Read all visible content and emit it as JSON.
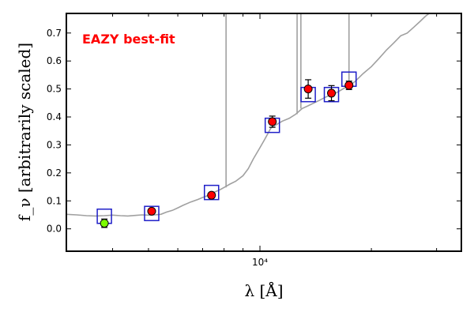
{
  "chart_data": {
    "type": "scatter",
    "xscale": "log",
    "xlim": [
      3000,
      35000
    ],
    "ylim": [
      -0.08,
      0.77
    ],
    "xlabel": "λ [Å]",
    "ylabel": "f_ν [arbitrarily scaled]",
    "grid": false,
    "x_tick_labels": [
      {
        "value": 10000,
        "label": "10⁴"
      }
    ],
    "y_ticks": [
      0.0,
      0.1,
      0.2,
      0.3,
      0.4,
      0.5,
      0.6,
      0.7
    ],
    "y_tick_labels": [
      "0.0",
      "0.1",
      "0.2",
      "0.3",
      "0.4",
      "0.5",
      "0.6",
      "0.7"
    ],
    "annotation": "EAZY best-fit",
    "colors": {
      "template": "#a0a0a0",
      "model_boxes": "#1f1fc8",
      "detection": "#ff0000",
      "upper_point": "#7cfc00",
      "annotation": "#ff0000"
    },
    "template_sed": [
      [
        3000,
        0.052
      ],
      [
        3200,
        0.05
      ],
      [
        3400,
        0.047
      ],
      [
        3600,
        0.046
      ],
      [
        3800,
        0.047
      ],
      [
        4000,
        0.049
      ],
      [
        4200,
        0.047
      ],
      [
        4400,
        0.046
      ],
      [
        4600,
        0.048
      ],
      [
        4800,
        0.05
      ],
      [
        5000,
        0.049
      ],
      [
        5200,
        0.05
      ],
      [
        5400,
        0.052
      ],
      [
        5600,
        0.06
      ],
      [
        5800,
        0.066
      ],
      [
        6000,
        0.075
      ],
      [
        6200,
        0.084
      ],
      [
        6500,
        0.096
      ],
      [
        6800,
        0.105
      ],
      [
        7000,
        0.112
      ],
      [
        7200,
        0.118
      ],
      [
        7500,
        0.13
      ],
      [
        7800,
        0.14
      ],
      [
        8000,
        0.148
      ],
      [
        8300,
        0.16
      ],
      [
        8600,
        0.17
      ],
      [
        9000,
        0.19
      ],
      [
        9300,
        0.215
      ],
      [
        9600,
        0.25
      ],
      [
        10000,
        0.29
      ],
      [
        10300,
        0.32
      ],
      [
        10700,
        0.36
      ],
      [
        11000,
        0.37
      ],
      [
        11500,
        0.385
      ],
      [
        12000,
        0.395
      ],
      [
        12500,
        0.41
      ],
      [
        13000,
        0.43
      ],
      [
        13500,
        0.44
      ],
      [
        14000,
        0.45
      ],
      [
        14500,
        0.46
      ],
      [
        15000,
        0.47
      ],
      [
        15500,
        0.478
      ],
      [
        16000,
        0.485
      ],
      [
        16500,
        0.495
      ],
      [
        17000,
        0.505
      ],
      [
        17500,
        0.515
      ],
      [
        18000,
        0.525
      ],
      [
        18500,
        0.54
      ],
      [
        19000,
        0.555
      ],
      [
        20000,
        0.58
      ],
      [
        21000,
        0.61
      ],
      [
        22000,
        0.64
      ],
      [
        23000,
        0.665
      ],
      [
        24000,
        0.69
      ],
      [
        25000,
        0.7
      ],
      [
        26000,
        0.72
      ],
      [
        27000,
        0.74
      ],
      [
        28000,
        0.76
      ],
      [
        29000,
        0.775
      ]
    ],
    "emission_lines": [
      {
        "x": 8100,
        "peak": 0.77
      },
      {
        "x": 12600,
        "peak": 0.77
      },
      {
        "x": 12900,
        "peak": 0.77
      },
      {
        "x": 17400,
        "peak": 0.77
      }
    ],
    "model_fluxes": [
      {
        "x": 3800,
        "y": 0.045
      },
      {
        "x": 5100,
        "y": 0.055
      },
      {
        "x": 7400,
        "y": 0.13
      },
      {
        "x": 10800,
        "y": 0.37
      },
      {
        "x": 13500,
        "y": 0.48
      },
      {
        "x": 15600,
        "y": 0.48
      },
      {
        "x": 17400,
        "y": 0.535
      }
    ],
    "observed_fluxes": [
      {
        "x": 3800,
        "y": 0.02,
        "err": 0.015,
        "color": "#7cfc00"
      },
      {
        "x": 5100,
        "y": 0.063,
        "err": 0.006,
        "color": "#ff0000"
      },
      {
        "x": 7400,
        "y": 0.12,
        "err": 0.008,
        "color": "#ff0000"
      },
      {
        "x": 10800,
        "y": 0.383,
        "err": 0.02,
        "color": "#ff0000"
      },
      {
        "x": 13500,
        "y": 0.5,
        "err": 0.033,
        "color": "#ff0000"
      },
      {
        "x": 15600,
        "y": 0.485,
        "err": 0.027,
        "color": "#ff0000"
      },
      {
        "x": 17400,
        "y": 0.513,
        "err": 0.015,
        "color": "#ff0000"
      }
    ]
  }
}
